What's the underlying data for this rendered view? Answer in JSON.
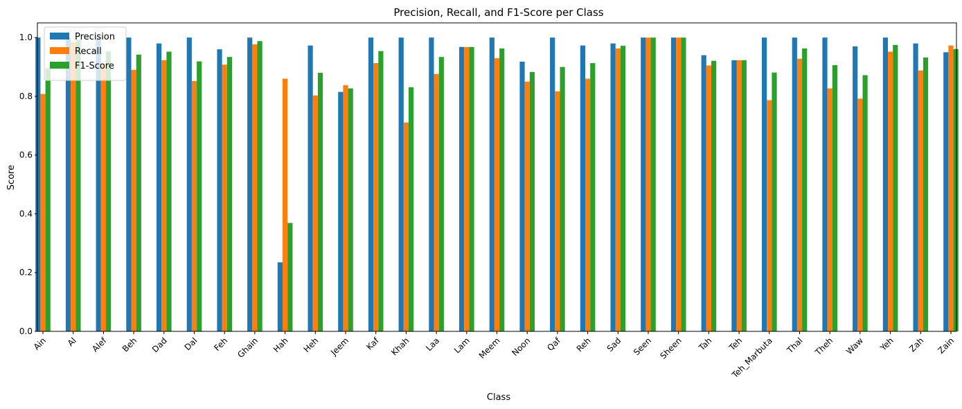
{
  "chart_data": {
    "type": "bar",
    "title": "Precision, Recall, and F1-Score per Class",
    "xlabel": "Class",
    "ylabel": "Score",
    "ylim": [
      0,
      1.05
    ],
    "yticks": [
      "0.0",
      "0.2",
      "0.4",
      "0.6",
      "0.8",
      "1.0"
    ],
    "legend_position": "top-left",
    "categories": [
      "Ain",
      "Al",
      "Alef",
      "Beh",
      "Dad",
      "Dal",
      "Feh",
      "Ghain",
      "Hah",
      "Heh",
      "Jeem",
      "Kaf",
      "Khah",
      "Laa",
      "Lam",
      "Meem",
      "Noon",
      "Qaf",
      "Reh",
      "Sad",
      "Seen",
      "Sheen",
      "Tah",
      "Teh",
      "Teh_Marbuta",
      "Thal",
      "Theh",
      "Waw",
      "Yeh",
      "Zah",
      "Zain"
    ],
    "series": [
      {
        "name": "Precision",
        "color": "#1f77b4",
        "values": [
          1.0,
          1.0,
          1.0,
          1.0,
          0.98,
          1.0,
          0.96,
          1.0,
          0.235,
          0.973,
          0.815,
          1.0,
          1.0,
          1.0,
          0.968,
          1.0,
          0.918,
          1.0,
          0.973,
          0.98,
          1.0,
          1.0,
          0.94,
          0.923,
          1.0,
          1.0,
          1.0,
          0.97,
          1.0,
          0.98,
          0.95
        ]
      },
      {
        "name": "Recall",
        "color": "#ff7f0e",
        "values": [
          0.808,
          0.985,
          0.91,
          0.89,
          0.923,
          0.852,
          0.908,
          0.977,
          0.86,
          0.803,
          0.838,
          0.913,
          0.711,
          0.876,
          0.968,
          0.93,
          0.85,
          0.817,
          0.86,
          0.963,
          1.0,
          1.0,
          0.905,
          0.923,
          0.787,
          0.928,
          0.827,
          0.792,
          0.952,
          0.888,
          0.973
        ]
      },
      {
        "name": "F1-Score",
        "color": "#2ca02c",
        "values": [
          0.895,
          0.992,
          0.953,
          0.942,
          0.952,
          0.919,
          0.934,
          0.988,
          0.369,
          0.88,
          0.827,
          0.954,
          0.831,
          0.934,
          0.968,
          0.963,
          0.883,
          0.9,
          0.913,
          0.972,
          1.0,
          1.0,
          0.921,
          0.923,
          0.881,
          0.963,
          0.906,
          0.872,
          0.975,
          0.932,
          0.961
        ]
      }
    ]
  }
}
